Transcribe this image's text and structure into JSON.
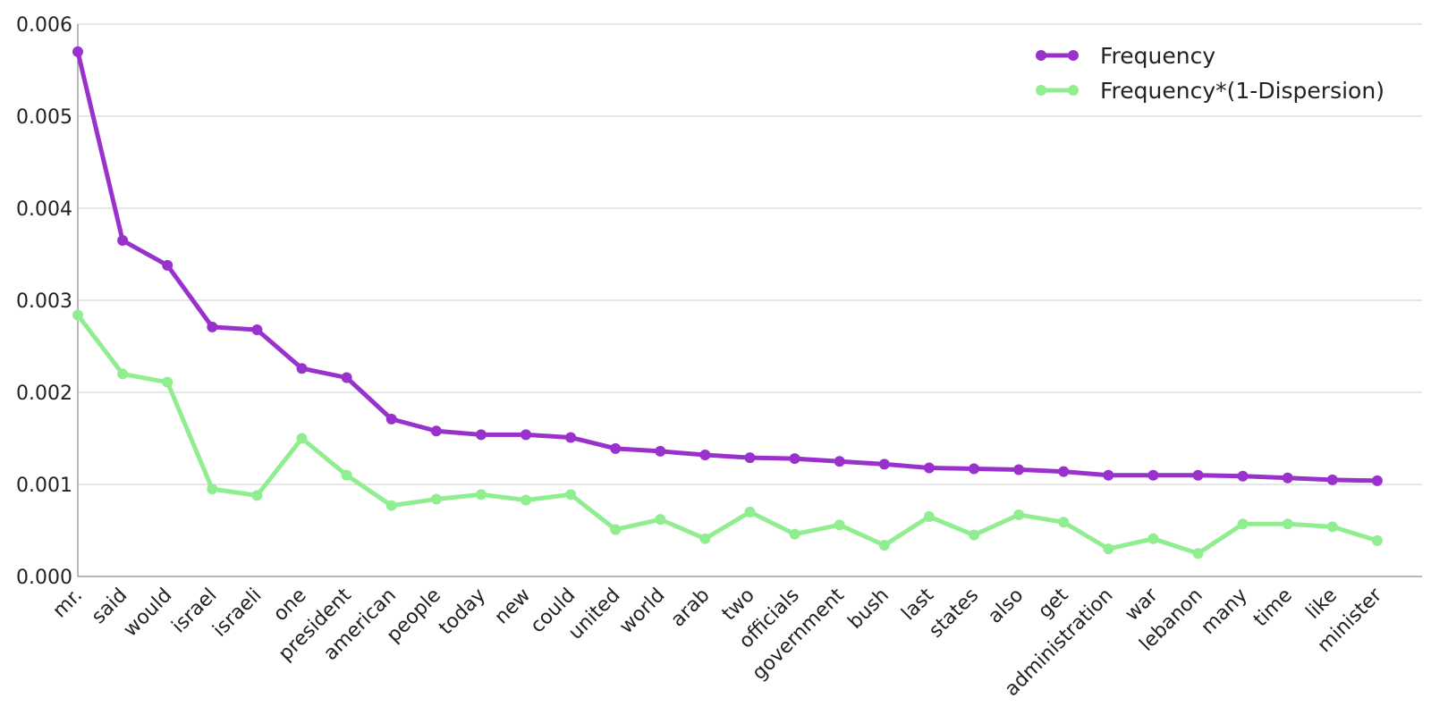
{
  "chart_data": {
    "type": "line",
    "categories": [
      "mr.",
      "said",
      "would",
      "israel",
      "israeli",
      "one",
      "president",
      "american",
      "people",
      "today",
      "new",
      "could",
      "united",
      "world",
      "arab",
      "two",
      "officials",
      "government",
      "bush",
      "last",
      "states",
      "also",
      "get",
      "administration",
      "war",
      "lebanon",
      "many",
      "time",
      "like",
      "minister"
    ],
    "series": [
      {
        "name": "Frequency",
        "color": "#9932cc",
        "values": [
          0.0057,
          0.00365,
          0.00338,
          0.00271,
          0.00268,
          0.00226,
          0.00216,
          0.00171,
          0.00158,
          0.00154,
          0.00154,
          0.00151,
          0.00139,
          0.00136,
          0.00132,
          0.00129,
          0.00128,
          0.00125,
          0.00122,
          0.00118,
          0.00117,
          0.00116,
          0.00114,
          0.0011,
          0.0011,
          0.0011,
          0.00109,
          0.00107,
          0.00105,
          0.00104
        ]
      },
      {
        "name": "Frequency*(1-Dispersion)",
        "color": "#90ee90",
        "values": [
          0.00284,
          0.0022,
          0.00211,
          0.00095,
          0.00088,
          0.0015,
          0.0011,
          0.00077,
          0.00084,
          0.00089,
          0.00083,
          0.00089,
          0.00051,
          0.00062,
          0.00041,
          0.0007,
          0.00046,
          0.00056,
          0.00034,
          0.00065,
          0.00045,
          0.00067,
          0.00059,
          0.0003,
          0.00041,
          0.00025,
          0.00057,
          0.00057,
          0.00054,
          0.00039
        ]
      }
    ],
    "yticks": [
      "0.000",
      "0.001",
      "0.002",
      "0.003",
      "0.004",
      "0.005",
      "0.006"
    ],
    "ylim": [
      0,
      0.006
    ],
    "grid": "horizontal",
    "legend": "top-right",
    "xlabel": "",
    "ylabel": "",
    "title": ""
  }
}
